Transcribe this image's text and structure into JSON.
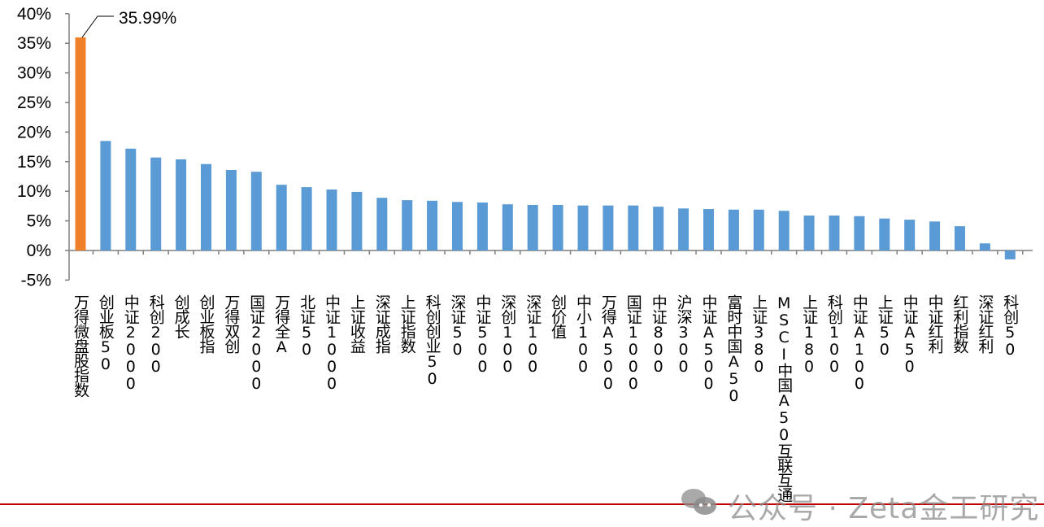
{
  "chart_data": {
    "type": "bar",
    "title": "",
    "xlabel": "",
    "ylabel": "",
    "ylim": [
      -5,
      40
    ],
    "yticks": [
      "-5%",
      "0%",
      "5%",
      "10%",
      "15%",
      "20%",
      "25%",
      "30%",
      "35%",
      "40%"
    ],
    "ytick_values": [
      -5,
      0,
      5,
      10,
      15,
      20,
      25,
      30,
      35,
      40
    ],
    "grid": false,
    "legend": "none",
    "categories": [
      "万得微盘股指数",
      "创业板50",
      "中证2000",
      "科创200",
      "创成长",
      "创业板指",
      "万得双创",
      "国证2000",
      "万得全A",
      "北证50",
      "中证1000",
      "上证收益",
      "深证成指",
      "上证指数",
      "科创创业50",
      "深证50",
      "中证500",
      "深创100",
      "深证100",
      "创价值",
      "中小100",
      "万得A500",
      "国证1000",
      "中证800",
      "沪深300",
      "中证A500",
      "富时中国A50",
      "上证380",
      "MSCI中国A50互联互通",
      "上证180",
      "科创100",
      "中证A100",
      "上证50",
      "中证A50",
      "中证红利",
      "红利指数",
      "深证红利",
      "科创50"
    ],
    "values": [
      35.99,
      18.5,
      17.2,
      15.7,
      15.4,
      14.6,
      13.6,
      13.3,
      11.1,
      10.7,
      10.3,
      9.9,
      8.9,
      8.5,
      8.4,
      8.2,
      8.1,
      7.8,
      7.7,
      7.7,
      7.6,
      7.6,
      7.6,
      7.4,
      7.1,
      7.0,
      6.9,
      6.9,
      6.7,
      5.9,
      5.9,
      5.8,
      5.4,
      5.2,
      4.9,
      4.1,
      1.2,
      -1.5
    ],
    "annotation": "35.99%",
    "colors": {
      "highlight": "#f07f2a",
      "default": "#5b9bd5"
    }
  },
  "watermark": "公众号 · Zeta金工研究"
}
